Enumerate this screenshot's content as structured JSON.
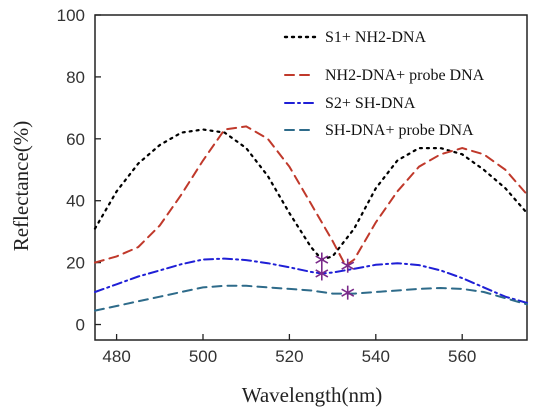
{
  "chart_data": {
    "type": "line",
    "xlabel": "Wavelength(nm)",
    "ylabel": "Reflectance(%)",
    "xlim": [
      475,
      575
    ],
    "ylim": [
      -5,
      100
    ],
    "xticks": [
      480,
      500,
      520,
      540,
      560
    ],
    "yticks": [
      0,
      20,
      40,
      60,
      80,
      100
    ],
    "xtick_labels": [
      "480",
      "500",
      "520",
      "540",
      "560"
    ],
    "ytick_labels": [
      "0",
      "20",
      "40",
      "60",
      "80",
      "100"
    ],
    "grid": false,
    "legend_position": "top-right",
    "series": [
      {
        "name": "S1+ NH2-DNA",
        "color": "#000000",
        "style": "dotted",
        "x": [
          475,
          480,
          485,
          490,
          495,
          500,
          505,
          510,
          515,
          520,
          525,
          527.5,
          530,
          535,
          540,
          545,
          550,
          555,
          560,
          565,
          570,
          575
        ],
        "y": [
          31,
          43,
          52,
          58,
          62,
          63,
          62,
          57,
          48,
          36,
          25,
          21,
          22,
          31,
          44,
          53,
          57,
          57,
          55,
          50,
          44,
          36
        ]
      },
      {
        "name": "NH2-DNA+ probe DNA",
        "color": "#c0392b",
        "style": "dashed",
        "x": [
          475,
          480,
          485,
          490,
          495,
          500,
          505,
          510,
          515,
          520,
          525,
          530,
          533,
          535,
          540,
          545,
          550,
          555,
          560,
          565,
          570,
          575
        ],
        "y": [
          20,
          22,
          25,
          32,
          42,
          53,
          63,
          64,
          60,
          51,
          39,
          27,
          19,
          21,
          33,
          43,
          51,
          55,
          57,
          55,
          50,
          42
        ]
      },
      {
        "name": "S2+ SH-DNA",
        "color": "#1f1fd6",
        "style": "dashdot",
        "x": [
          475,
          480,
          485,
          490,
          495,
          500,
          505,
          510,
          515,
          520,
          525,
          527.5,
          530,
          535,
          540,
          545,
          550,
          555,
          560,
          565,
          570,
          575
        ],
        "y": [
          10.5,
          13,
          15.5,
          17.5,
          19.5,
          21,
          21.3,
          20.8,
          19.8,
          18.5,
          17,
          16.5,
          16.8,
          18,
          19.3,
          19.8,
          19.2,
          17.5,
          15,
          12,
          9,
          7
        ]
      },
      {
        "name": "SH-DNA+ probe DNA",
        "color": "#2e6b8a",
        "style": "dashed",
        "x": [
          475,
          480,
          485,
          490,
          495,
          500,
          505,
          510,
          515,
          520,
          525,
          530,
          533,
          535,
          540,
          545,
          550,
          555,
          560,
          565,
          570,
          575
        ],
        "y": [
          4.5,
          6,
          7.5,
          9,
          10.5,
          12,
          12.5,
          12.5,
          12,
          11.5,
          11,
          10,
          10,
          10,
          10.5,
          11,
          11.5,
          11.8,
          11.5,
          10.5,
          8.5,
          6.5
        ]
      }
    ],
    "markers": [
      {
        "x": 527.5,
        "y": 21,
        "color": "#7a2a8a"
      },
      {
        "x": 527.5,
        "y": 16.5,
        "color": "#7a2a8a"
      },
      {
        "x": 533.5,
        "y": 19,
        "color": "#7a2a8a"
      },
      {
        "x": 533.5,
        "y": 10.3,
        "color": "#7a2a8a"
      }
    ]
  }
}
